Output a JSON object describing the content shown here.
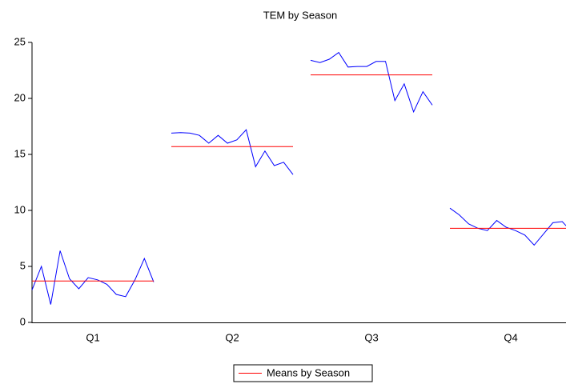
{
  "chart_data": {
    "type": "seasonal_line",
    "title": "TEM by Season",
    "categories": [
      "Q1",
      "Q2",
      "Q3",
      "Q4"
    ],
    "values": [
      [
        2.9,
        5.0,
        1.6,
        6.4,
        3.9,
        3.0,
        4.0,
        3.8,
        3.4,
        2.5,
        2.3,
        3.8,
        5.7,
        3.6
      ],
      [
        16.9,
        16.95,
        16.9,
        16.7,
        16.0,
        16.7,
        16.0,
        16.3,
        17.2,
        13.9,
        15.3,
        14.0,
        14.3,
        13.2
      ],
      [
        23.4,
        23.2,
        23.5,
        24.1,
        22.8,
        22.85,
        22.85,
        23.3,
        23.3,
        19.8,
        21.3,
        18.8,
        20.6,
        19.4
      ],
      [
        10.2,
        9.6,
        8.8,
        8.4,
        8.2,
        9.1,
        8.5,
        8.2,
        7.8,
        6.9,
        7.9,
        8.9,
        9.0,
        8.1
      ]
    ],
    "means": [
      3.7,
      15.7,
      22.1,
      8.4
    ],
    "means_name": "Means by Season",
    "line_color": "#0000ff",
    "mean_color": "#ff0000",
    "ylim": [
      0,
      25
    ],
    "yticks": [
      0,
      5,
      10,
      15,
      20,
      25
    ]
  }
}
